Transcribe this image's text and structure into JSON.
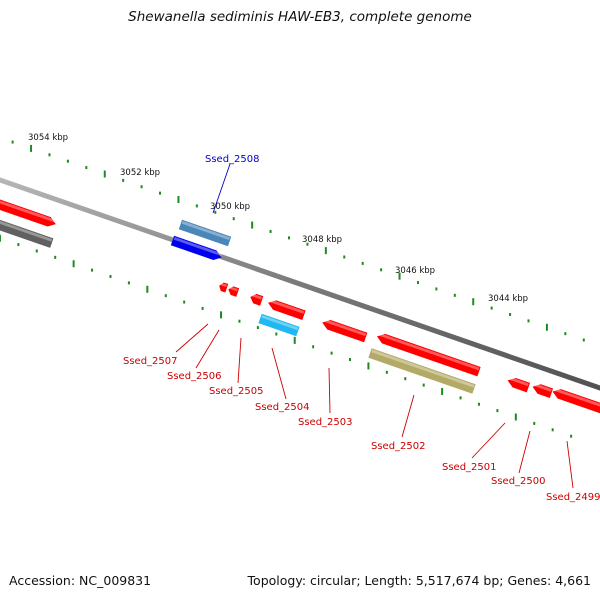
{
  "title": "Shewanella sediminis HAW-EB3, complete genome",
  "footer": {
    "accession_label": "Accession:",
    "accession": "NC_009831",
    "topology_label": "Topology:",
    "topology": "circular",
    "length_label": "Length:",
    "length": "5,517,674 bp",
    "genes_label": "Genes:",
    "genes": "4,661"
  },
  "colors": {
    "backbone": "#7a7a7a",
    "tick": "#1e8a1e",
    "label_blue": "#0000cc",
    "label_red": "#cc0000",
    "gene_red": "#ff0000",
    "gene_blue": "#0000ee",
    "gene_steelblue": "#4a86b8",
    "gene_cyan": "#1fb8f0",
    "gene_olive": "#b2aa66",
    "gene_gray": "#606060"
  },
  "scale": {
    "unit": "kbp",
    "labels": [
      "3054 kbp",
      "3052 kbp",
      "3050 kbp",
      "3048 kbp",
      "3046 kbp",
      "3044 kbp"
    ]
  },
  "genes": [
    {
      "locus": "Ssed_2508",
      "strand": "+",
      "color": "gene_blue"
    },
    {
      "locus": "Ssed_2507",
      "strand": "-",
      "color": "gene_red"
    },
    {
      "locus": "Ssed_2506",
      "strand": "-",
      "color": "gene_red"
    },
    {
      "locus": "Ssed_2505",
      "strand": "-",
      "color": "gene_red"
    },
    {
      "locus": "Ssed_2504",
      "strand": "-",
      "color": "gene_red"
    },
    {
      "locus": "Ssed_2503",
      "strand": "-",
      "color": "gene_red"
    },
    {
      "locus": "Ssed_2502",
      "strand": "-",
      "color": "gene_red"
    },
    {
      "locus": "Ssed_2501",
      "strand": "-",
      "color": "gene_red"
    },
    {
      "locus": "Ssed_2500",
      "strand": "-",
      "color": "gene_red"
    },
    {
      "locus": "Ssed_2499",
      "strand": "-",
      "color": "gene_red"
    }
  ]
}
